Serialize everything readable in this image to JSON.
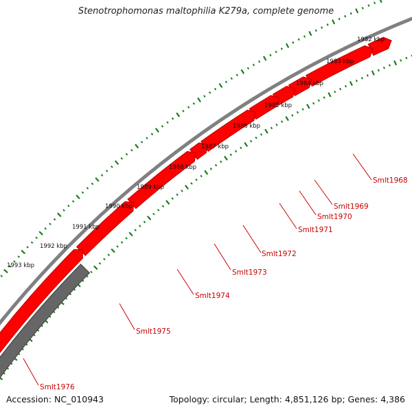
{
  "title": "Stenotrophomonas maltophilia K279a, complete genome",
  "footer": {
    "accession": "Accession: NC_010943",
    "topology": "Topology: circular; Length: 4,851,126 bp; Genes: 4,386"
  },
  "colors": {
    "backbone": "#808080",
    "gene": "#ff0000",
    "gene_dark": "#b40000",
    "gene_gray": "#666666",
    "gene_gray_dark": "#3c3c3c",
    "tick": "#1a7a1a",
    "label": "#cc0000"
  },
  "kbp_labels": [
    "1982 kbp",
    "1983 kbp",
    "1984 kbp",
    "1985 kbp",
    "1986 kbp",
    "1987 kbp",
    "1988 kbp",
    "1989 kbp",
    "1990 kbp",
    "1991 kbp",
    "1992 kbp",
    "1993 kbp"
  ],
  "genes": [
    "Smlt1968",
    "Smlt1969",
    "Smlt1970",
    "Smlt1971",
    "Smlt1972",
    "Smlt1973",
    "Smlt1974",
    "Smlt1975",
    "Smlt1976"
  ]
}
